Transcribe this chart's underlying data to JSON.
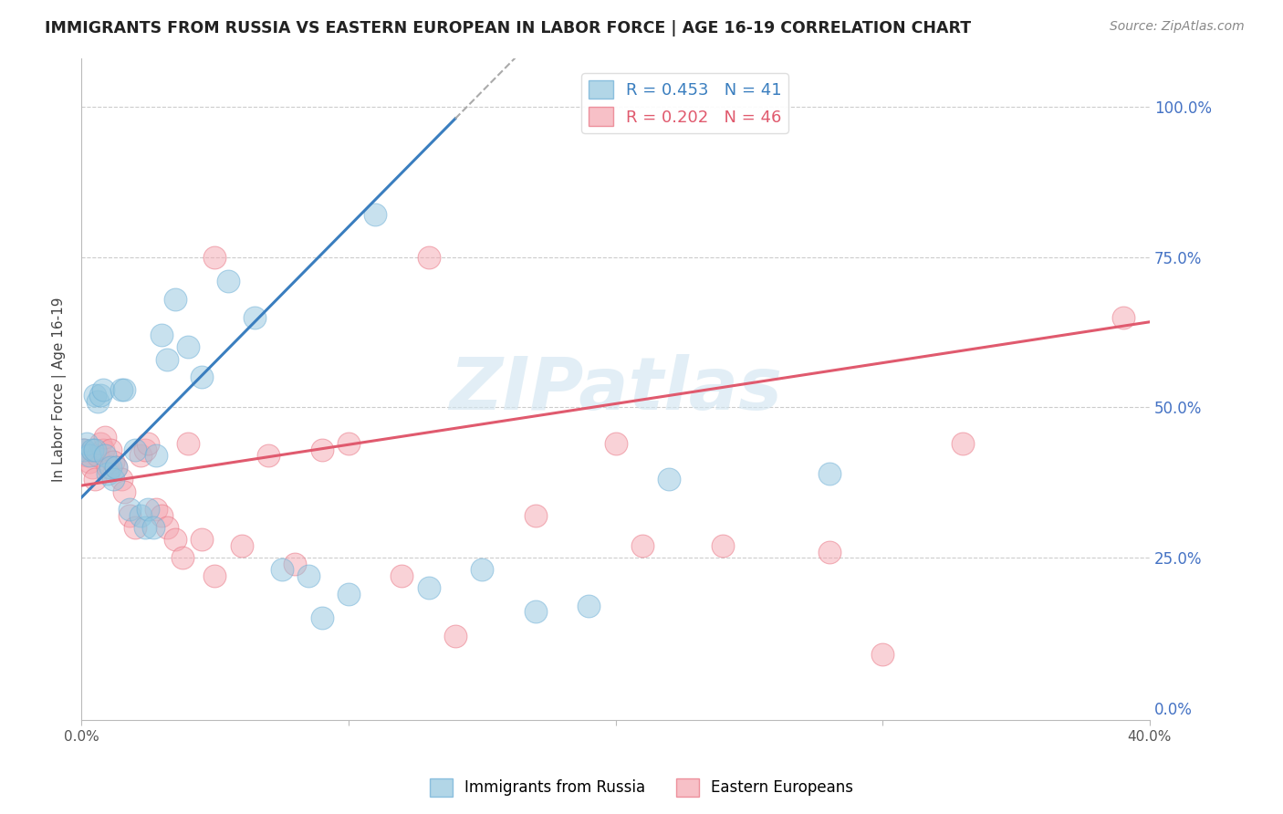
{
  "title": "IMMIGRANTS FROM RUSSIA VS EASTERN EUROPEAN IN LABOR FORCE | AGE 16-19 CORRELATION CHART",
  "source": "Source: ZipAtlas.com",
  "ylabel": "In Labor Force | Age 16-19",
  "ytick_labels": [
    "100.0%",
    "75.0%",
    "50.0%",
    "25.0%",
    "0.0%"
  ],
  "ytick_values": [
    1.0,
    0.75,
    0.5,
    0.25,
    0.0
  ],
  "xlim": [
    0.0,
    0.4
  ],
  "ylim": [
    -0.02,
    1.08
  ],
  "russia_R": 0.453,
  "russia_N": 41,
  "eastern_R": 0.202,
  "eastern_N": 46,
  "russia_color": "#92c5de",
  "eastern_color": "#f4a6b0",
  "russia_edge_color": "#6baed6",
  "eastern_edge_color": "#e87080",
  "russia_line_color": "#3a7ebf",
  "eastern_line_color": "#e05a6e",
  "russia_line_dash": null,
  "watermark_text": "ZIPatlas",
  "russia_scatter_x": [
    0.001,
    0.002,
    0.003,
    0.004,
    0.005,
    0.005,
    0.006,
    0.007,
    0.008,
    0.009,
    0.01,
    0.011,
    0.012,
    0.013,
    0.015,
    0.016,
    0.018,
    0.02,
    0.022,
    0.024,
    0.025,
    0.027,
    0.028,
    0.03,
    0.032,
    0.035,
    0.04,
    0.045,
    0.055,
    0.065,
    0.075,
    0.085,
    0.09,
    0.1,
    0.11,
    0.13,
    0.15,
    0.17,
    0.19,
    0.22,
    0.28
  ],
  "russia_scatter_y": [
    0.43,
    0.44,
    0.42,
    0.43,
    0.43,
    0.52,
    0.51,
    0.52,
    0.53,
    0.42,
    0.39,
    0.4,
    0.38,
    0.4,
    0.53,
    0.53,
    0.33,
    0.43,
    0.32,
    0.3,
    0.33,
    0.3,
    0.42,
    0.62,
    0.58,
    0.68,
    0.6,
    0.55,
    0.71,
    0.65,
    0.23,
    0.22,
    0.15,
    0.19,
    0.82,
    0.2,
    0.23,
    0.16,
    0.17,
    0.38,
    0.39
  ],
  "eastern_scatter_x": [
    0.0005,
    0.001,
    0.002,
    0.003,
    0.004,
    0.005,
    0.006,
    0.007,
    0.008,
    0.009,
    0.01,
    0.011,
    0.012,
    0.013,
    0.015,
    0.016,
    0.018,
    0.02,
    0.022,
    0.024,
    0.025,
    0.028,
    0.03,
    0.032,
    0.035,
    0.038,
    0.04,
    0.045,
    0.05,
    0.06,
    0.07,
    0.08,
    0.1,
    0.12,
    0.14,
    0.17,
    0.2,
    0.24,
    0.28,
    0.33,
    0.39,
    0.05,
    0.09,
    0.13,
    0.21,
    0.3
  ],
  "eastern_scatter_y": [
    0.43,
    0.43,
    0.42,
    0.41,
    0.4,
    0.38,
    0.42,
    0.44,
    0.43,
    0.45,
    0.4,
    0.43,
    0.41,
    0.4,
    0.38,
    0.36,
    0.32,
    0.3,
    0.42,
    0.43,
    0.44,
    0.33,
    0.32,
    0.3,
    0.28,
    0.25,
    0.44,
    0.28,
    0.22,
    0.27,
    0.42,
    0.24,
    0.44,
    0.22,
    0.12,
    0.32,
    0.44,
    0.27,
    0.26,
    0.44,
    0.65,
    0.75,
    0.43,
    0.75,
    0.27,
    0.09
  ]
}
